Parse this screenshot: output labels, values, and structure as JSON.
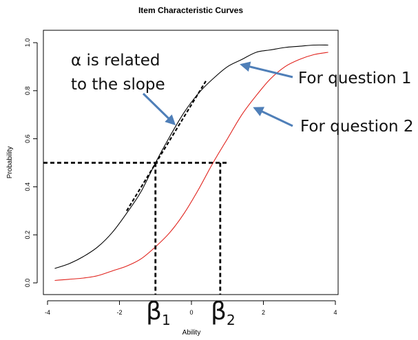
{
  "chart_data": {
    "type": "line",
    "title": "Item Characteristic Curves",
    "xlabel": "Ability",
    "ylabel": "Probability",
    "xlim": [
      -4,
      4
    ],
    "ylim": [
      0,
      1
    ],
    "x_ticks": [
      "-4",
      "-2",
      "0",
      "2",
      "4"
    ],
    "y_ticks": [
      "0.0",
      "0.2",
      "0.4",
      "0.6",
      "0.8",
      "1.0"
    ],
    "grid": false,
    "series": [
      {
        "color": "#000000",
        "x": [
          -3.8,
          -3.4,
          -3.0,
          -2.6,
          -2.2,
          -1.8,
          -1.4,
          -1.0,
          -0.6,
          -0.2,
          0.2,
          0.6,
          1.0,
          1.4,
          1.8,
          2.2,
          2.6,
          3.0,
          3.4,
          3.8
        ],
        "y": [
          0.06,
          0.08,
          0.11,
          0.15,
          0.21,
          0.29,
          0.38,
          0.5,
          0.61,
          0.71,
          0.79,
          0.85,
          0.9,
          0.93,
          0.96,
          0.97,
          0.98,
          0.985,
          0.99,
          0.99
        ]
      },
      {
        "color": "#e0201a",
        "x": [
          -3.8,
          -3.4,
          -3.0,
          -2.6,
          -2.2,
          -1.8,
          -1.4,
          -1.0,
          -0.6,
          -0.2,
          0.2,
          0.6,
          1.0,
          1.4,
          1.8,
          2.2,
          2.6,
          3.0,
          3.4,
          3.8
        ],
        "y": [
          0.01,
          0.015,
          0.02,
          0.03,
          0.05,
          0.07,
          0.1,
          0.15,
          0.21,
          0.29,
          0.39,
          0.5,
          0.6,
          0.7,
          0.78,
          0.85,
          0.9,
          0.93,
          0.95,
          0.96
        ]
      }
    ],
    "reference_lines": {
      "horizontal_y": 0.5,
      "horizontal_x_end": 0.8,
      "vertical_x": [
        -1.0,
        0.8
      ],
      "slope_line": {
        "x": [
          -1.8,
          0.4
        ],
        "y": [
          0.3,
          0.84
        ]
      }
    },
    "annotations": [
      {
        "text_lines": [
          "α is related",
          "to the slope"
        ]
      },
      {
        "text": "For question 1"
      },
      {
        "text": "For question 2"
      }
    ],
    "beta_labels": [
      {
        "base": "β",
        "sub": "1"
      },
      {
        "base": "β",
        "sub": "2"
      }
    ]
  }
}
